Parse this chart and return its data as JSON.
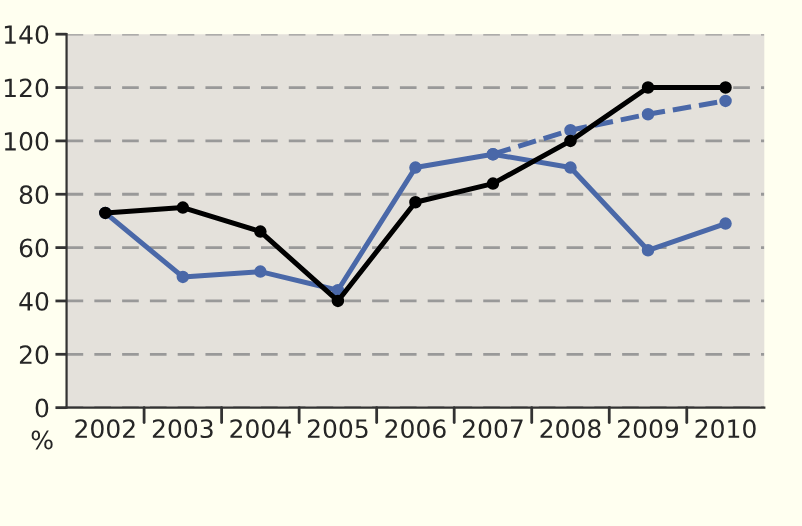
{
  "chart_data": {
    "type": "line",
    "ylabel": "%",
    "categories": [
      "2002",
      "2003",
      "2004",
      "2005",
      "2006",
      "2007",
      "2008",
      "2009",
      "2010"
    ],
    "series": [
      {
        "color": "#4a68a8",
        "values": [
          73,
          49,
          51,
          44,
          90,
          95,
          90,
          59,
          69
        ]
      },
      {
        "color": "#4a68a8",
        "line_style": "dashed",
        "values": [
          null,
          null,
          null,
          null,
          null,
          95,
          104,
          110,
          115
        ]
      },
      {
        "color": "#000000",
        "values": [
          73,
          75,
          66,
          40,
          77,
          84,
          100,
          120,
          120
        ]
      }
    ],
    "ylim": [
      0,
      140
    ],
    "yticks": [
      0,
      20,
      40,
      60,
      80,
      100,
      120,
      140
    ],
    "grid": "y",
    "marker": "circle",
    "legend": false
  }
}
